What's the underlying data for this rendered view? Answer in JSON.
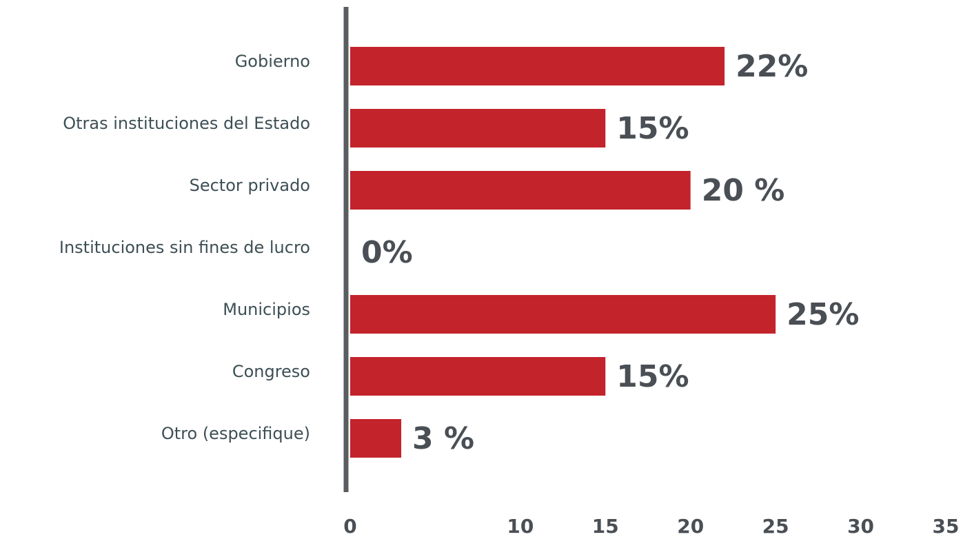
{
  "chart_data": {
    "type": "bar",
    "orientation": "horizontal",
    "categories": [
      "Gobierno",
      "Otras instituciones del Estado",
      "Sector privado",
      "Instituciones sin fines de lucro",
      "Municipios",
      "Congreso",
      "Otro (especifique)"
    ],
    "values": [
      22,
      15,
      20,
      0,
      25,
      15,
      3
    ],
    "value_labels": [
      "22%",
      "15%",
      "20 %",
      "0%",
      "25%",
      "15%",
      "3 %"
    ],
    "color": "#c3232b",
    "xlim": [
      0,
      35
    ],
    "xticks": [
      0,
      10,
      15,
      20,
      25,
      30,
      35
    ],
    "grid": false
  }
}
